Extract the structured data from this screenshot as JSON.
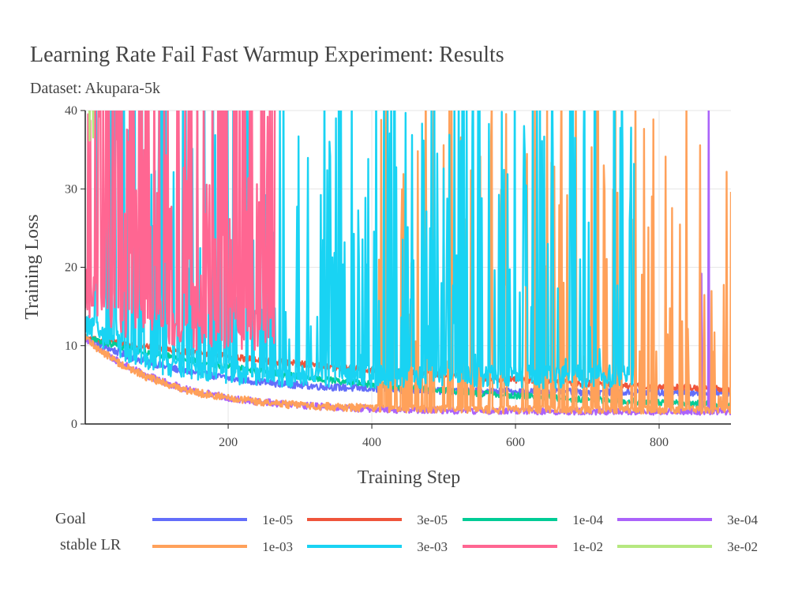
{
  "chart_data": {
    "type": "line",
    "title": "Learning Rate Fail Fast Warmup Experiment: Results",
    "subtitle": "Dataset: Akupara-5k",
    "xlabel": "Training Step",
    "ylabel": "Training Loss",
    "xlim": [
      1,
      900
    ],
    "ylim": [
      0,
      40
    ],
    "x_ticks": [
      200,
      400,
      600,
      800
    ],
    "y_ticks": [
      0,
      10,
      20,
      30,
      40
    ],
    "grid": true,
    "legend_title_line1": "Goal",
    "legend_title_line2": "stable LR",
    "legend_position": "bottom",
    "series": [
      {
        "name": "1e-05",
        "color": "#636efa",
        "start_loss": 11,
        "end_loss": 4.0,
        "decay": 150,
        "noise": 0.45,
        "spike_prob": 0,
        "end_step": 900
      },
      {
        "name": "3e-05",
        "color": "#ef553b",
        "start_loss": 11,
        "end_loss": 2.5,
        "decay": 600,
        "noise": 0.4,
        "spike_prob": 0,
        "end_step": 900
      },
      {
        "name": "1e-04",
        "color": "#00cc96",
        "start_loss": 11,
        "end_loss": 1.3,
        "decay": 420,
        "noise": 0.4,
        "spike_prob": 0,
        "end_step": 900
      },
      {
        "name": "3e-04",
        "color": "#ab63fa",
        "start_loss": 11,
        "end_loss": 1.6,
        "decay": 120,
        "noise": 0.45,
        "spike_prob": 0.05,
        "spike_from": 840,
        "end_step": 900
      },
      {
        "name": "1e-03",
        "color": "#ffa15a",
        "start_loss": 11,
        "end_loss": 1.8,
        "decay": 110,
        "noise": 0.5,
        "spike_prob": 0.22,
        "spike_from": 410,
        "end_step": 900
      },
      {
        "name": "3e-03",
        "color": "#19d3f3",
        "start_loss": 13,
        "end_loss": 6.0,
        "decay": 80,
        "noise": 1.5,
        "spike_prob": 0.3,
        "spike_from": 10,
        "end_step": 765
      },
      {
        "name": "1e-02",
        "color": "#ff6692",
        "start_loss": 17,
        "end_loss": 12,
        "decay": 60,
        "noise": 3.0,
        "spike_prob": 0.55,
        "spike_from": 5,
        "end_step": 265
      },
      {
        "name": "3e-02",
        "color": "#b6e880",
        "start_loss": 40,
        "end_loss": 30,
        "decay": 40,
        "noise": 5.0,
        "spike_prob": 0.8,
        "spike_from": 1,
        "end_step": 22
      }
    ]
  }
}
